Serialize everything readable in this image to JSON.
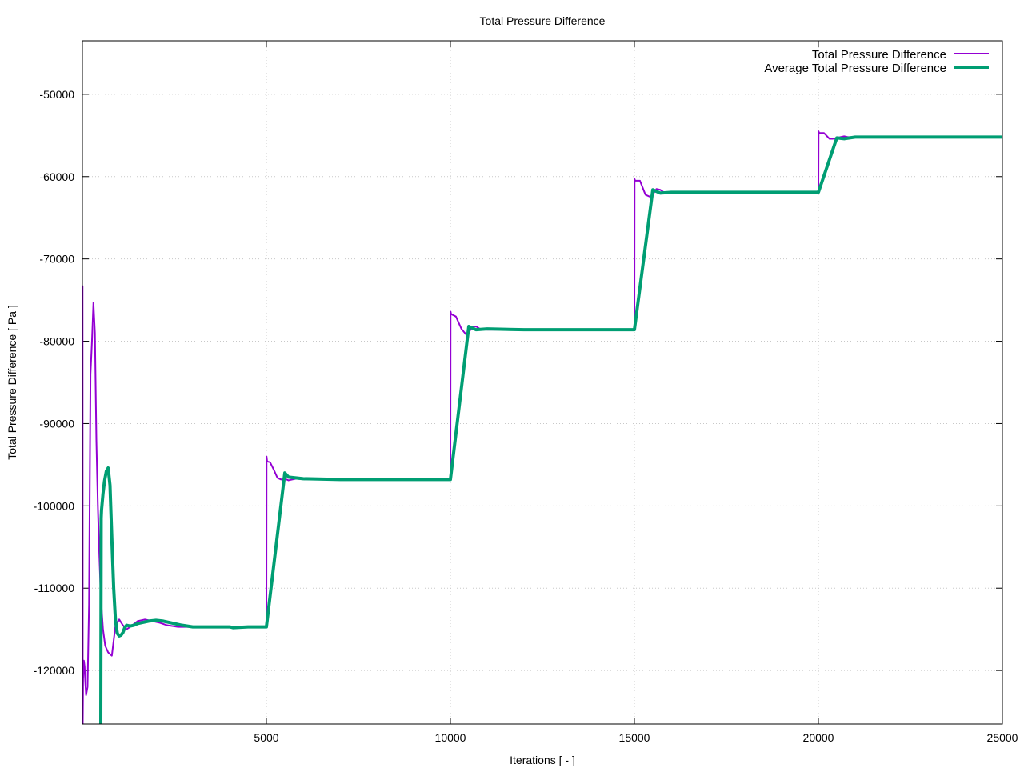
{
  "chart_data": {
    "type": "line",
    "title": "Total Pressure Difference",
    "xlabel": "Iterations [ - ]",
    "ylabel": "Total Pressure Difference [ Pa ]",
    "xlim": [
      0,
      25000
    ],
    "ylim": [
      -126500,
      -43500
    ],
    "xticks": [
      5000,
      10000,
      15000,
      20000,
      25000
    ],
    "yticks": [
      -50000,
      -60000,
      -70000,
      -80000,
      -90000,
      -100000,
      -110000,
      -120000
    ],
    "grid": true,
    "legend_position": "top-right",
    "series": [
      {
        "name": "Total Pressure Difference",
        "color": "#9400d3",
        "width": 2,
        "x": [
          0,
          5,
          10,
          20,
          40,
          60,
          80,
          100,
          140,
          180,
          220,
          260,
          300,
          340,
          380,
          420,
          460,
          500,
          560,
          620,
          700,
          800,
          900,
          1000,
          1100,
          1200,
          1300,
          1500,
          1700,
          1900,
          2100,
          2300,
          2600,
          3000,
          3500,
          4000,
          4500,
          5000,
          5005,
          5020,
          5100,
          5200,
          5300,
          5400,
          5500,
          5600,
          5800,
          6200,
          7000,
          8000,
          9000,
          10000,
          10005,
          10020,
          10150,
          10300,
          10450,
          10600,
          10700,
          10800,
          11000,
          11500,
          12500,
          14000,
          15000,
          15005,
          15020,
          15150,
          15300,
          15450,
          15600,
          15700,
          15800,
          16000,
          16500,
          17500,
          19000,
          20000,
          20005,
          20020,
          20150,
          20300,
          20400,
          20500,
          20600,
          20700,
          20800,
          21000,
          22000,
          23000,
          24000,
          25000
        ],
        "y": [
          -126500,
          -73300,
          -126500,
          -121000,
          -118800,
          -119500,
          -121500,
          -123000,
          -122000,
          -112000,
          -84000,
          -80000,
          -75300,
          -79000,
          -92000,
          -100000,
          -106000,
          -111000,
          -115000,
          -117000,
          -117800,
          -118200,
          -114500,
          -113800,
          -114500,
          -115000,
          -114700,
          -114000,
          -113800,
          -114000,
          -114200,
          -114500,
          -114700,
          -114700,
          -114700,
          -114700,
          -114700,
          -114700,
          -94000,
          -94600,
          -94700,
          -95600,
          -96600,
          -96800,
          -96700,
          -96900,
          -96700,
          -96800,
          -96800,
          -96800,
          -96800,
          -96800,
          -76400,
          -76700,
          -77000,
          -78500,
          -79300,
          -78200,
          -78200,
          -78500,
          -78600,
          -78600,
          -78600,
          -78600,
          -78600,
          -60300,
          -60500,
          -60500,
          -62200,
          -62500,
          -61500,
          -61600,
          -61900,
          -61900,
          -61900,
          -61900,
          -61900,
          -61900,
          -54500,
          -54700,
          -54700,
          -55400,
          -55400,
          -55300,
          -55200,
          -55100,
          -55200,
          -55200,
          -55200,
          -55200,
          -55200,
          -55200
        ]
      },
      {
        "name": "Average Total Pressure Difference",
        "color": "#009e73",
        "width": 4,
        "x": [
          500,
          510,
          520,
          540,
          560,
          600,
          650,
          700,
          750,
          800,
          850,
          900,
          950,
          1000,
          1050,
          1100,
          1150,
          1200,
          1300,
          1400,
          1500,
          1600,
          1700,
          1800,
          2000,
          2200,
          2400,
          2700,
          3000,
          3500,
          4000,
          4100,
          4500,
          5000,
          5500,
          5600,
          5800,
          6000,
          7000,
          8000,
          9000,
          10000,
          10500,
          10700,
          11000,
          12000,
          13000,
          14000,
          15000,
          15500,
          15700,
          16000,
          17000,
          18000,
          19000,
          20000,
          20500,
          20700,
          21000,
          22000,
          23000,
          24000,
          25000
        ],
        "y": [
          -126500,
          -101500,
          -100500,
          -99500,
          -98500,
          -97000,
          -95800,
          -95400,
          -97500,
          -104000,
          -110000,
          -114000,
          -115500,
          -115800,
          -115700,
          -115400,
          -114800,
          -114500,
          -114600,
          -114500,
          -114300,
          -114200,
          -114100,
          -114000,
          -113900,
          -114000,
          -114200,
          -114500,
          -114700,
          -114700,
          -114700,
          -114800,
          -114700,
          -114700,
          -96000,
          -96500,
          -96600,
          -96700,
          -96800,
          -96800,
          -96800,
          -96800,
          -78200,
          -78600,
          -78500,
          -78600,
          -78600,
          -78600,
          -78600,
          -61600,
          -62000,
          -61900,
          -61900,
          -61900,
          -61900,
          -61900,
          -55300,
          -55400,
          -55200,
          -55200,
          -55200,
          -55200,
          -55200
        ]
      }
    ]
  }
}
